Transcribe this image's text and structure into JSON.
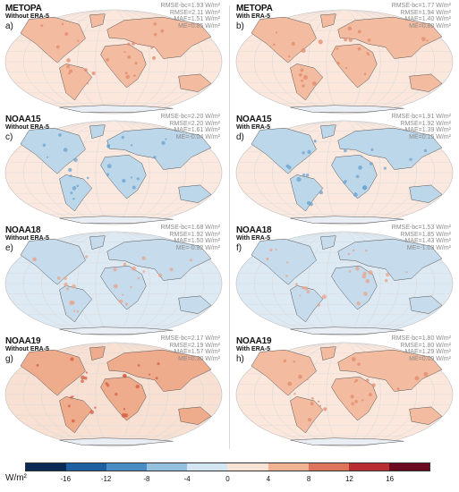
{
  "chart_data": {
    "type": "heatmap",
    "description_kind": "global map panels",
    "colorbar": {
      "unit": "W/m²",
      "ticks": [
        -16,
        -12,
        -8,
        -4,
        0,
        4,
        8,
        12,
        16
      ],
      "colors": [
        "#0b2a56",
        "#1f5ea0",
        "#4b8cc4",
        "#94c2de",
        "#d3e6f1",
        "#f9e3d6",
        "#f2b294",
        "#de7459",
        "#b92e32",
        "#6b0b1f"
      ]
    },
    "panels": [
      {
        "satellite": "METOPA",
        "config": "Without ERA-5",
        "label": "a)",
        "rmse_bc": "RMSE-bc=1.93 W/m²",
        "rmse": "RMSE=2.11 W/m²",
        "mae": "MAE=1.51 W/m²",
        "me": "ME=0.85 W/m²",
        "bias": "warm"
      },
      {
        "satellite": "METOPA",
        "config": "With ERA-5",
        "label": "b)",
        "rmse_bc": "RMSE-bc=1.77 W/m²",
        "rmse": "RMSE=1.94 W/m²",
        "mae": "MAE=1.40 W/m²",
        "me": "ME=0.80 W/m²",
        "bias": "warm"
      },
      {
        "satellite": "NOAA15",
        "config": "Without ERA-5",
        "label": "c)",
        "rmse_bc": "RMSE-bc=2.20 W/m²",
        "rmse": "RMSE=2.20 W/m²",
        "mae": "MAE=1.61 W/m²",
        "me": "ME=-0.04 W/m²",
        "bias": "cold"
      },
      {
        "satellite": "NOAA15",
        "config": "With ERA-5",
        "label": "d)",
        "rmse_bc": "RMSE-bc=1.91 W/m²",
        "rmse": "RMSE=1.92 W/m²",
        "mae": "MAE=1.39 W/m²",
        "me": "ME=0.15 W/m²",
        "bias": "cold"
      },
      {
        "satellite": "NOAA18",
        "config": "Without ERA-5",
        "label": "e)",
        "rmse_bc": "RMSE-bc=1.68 W/m²",
        "rmse": "RMSE=1.92 W/m²",
        "mae": "MAE=1.50 W/m²",
        "me": "ME=-0.92 W/m²",
        "bias": "cool"
      },
      {
        "satellite": "NOAA18",
        "config": "With ERA-5",
        "label": "f)",
        "rmse_bc": "RMSE-bc=1.53 W/m²",
        "rmse": "RMSE=1.85 W/m²",
        "mae": "MAE=1.43 W/m²",
        "me": "ME=-1.03 W/m²",
        "bias": "cool"
      },
      {
        "satellite": "NOAA19",
        "config": "Without ERA-5",
        "label": "g)",
        "rmse_bc": "RMSE-bc=2.17 W/m²",
        "rmse": "RMSE=2.19 W/m²",
        "mae": "MAE=1.57 W/m²",
        "me": "ME=0.30 W/m²",
        "bias": "hot"
      },
      {
        "satellite": "NOAA19",
        "config": "With ERA-5",
        "label": "h)",
        "rmse_bc": "RMSE-bc=1.80 W/m²",
        "rmse": "RMSE=1.80 W/m²",
        "mae": "MAE=1.29 W/m²",
        "me": "ME=0.09 W/m²",
        "bias": "warm"
      }
    ]
  }
}
